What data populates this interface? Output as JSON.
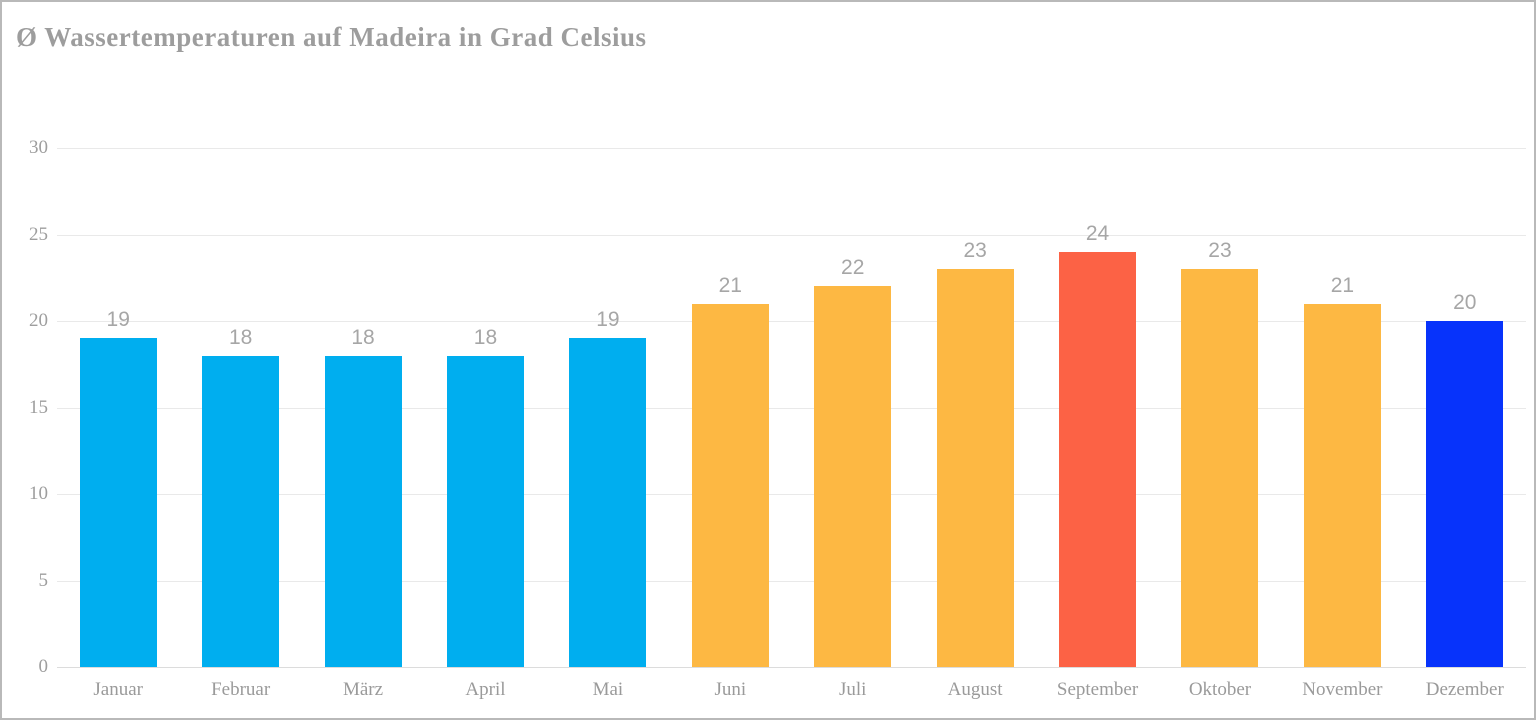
{
  "title": "Ø Wassertemperaturen auf Madeira in Grad Celsius",
  "chart_data": {
    "type": "bar",
    "title": "Ø Wassertemperaturen auf Madeira in Grad Celsius",
    "categories": [
      "Januar",
      "Februar",
      "März",
      "April",
      "Mai",
      "Juni",
      "Juli",
      "August",
      "September",
      "Oktober",
      "November",
      "Dezember"
    ],
    "values": [
      19,
      18,
      18,
      18,
      19,
      21,
      22,
      23,
      24,
      23,
      21,
      20
    ],
    "bar_colors": [
      "#00AEEF",
      "#00AEEF",
      "#00AEEF",
      "#00AEEF",
      "#00AEEF",
      "#FDB843",
      "#FDB843",
      "#FDB843",
      "#FC6245",
      "#FDB843",
      "#FDB843",
      "#0733FB"
    ],
    "data_labels": [
      19,
      18,
      18,
      18,
      19,
      21,
      22,
      23,
      24,
      23,
      21,
      20
    ],
    "xlabel": "",
    "ylabel": "",
    "ylim": [
      0,
      30
    ],
    "yticks": [
      0,
      5,
      10,
      15,
      20,
      25,
      30
    ],
    "grid": true,
    "legend_position": "none"
  },
  "colors": {
    "cold_months": "#00AEEF",
    "warm_months": "#FDB843",
    "peak_month": "#FC6245",
    "december": "#0733FB",
    "title_text": "#9D9D9D",
    "axis_text": "#9E9E9E",
    "data_label_text": "#A6A6A6",
    "gridline": "#E9E9E9",
    "frame_border": "#B9B9B9",
    "background": "#FFFFFF"
  }
}
